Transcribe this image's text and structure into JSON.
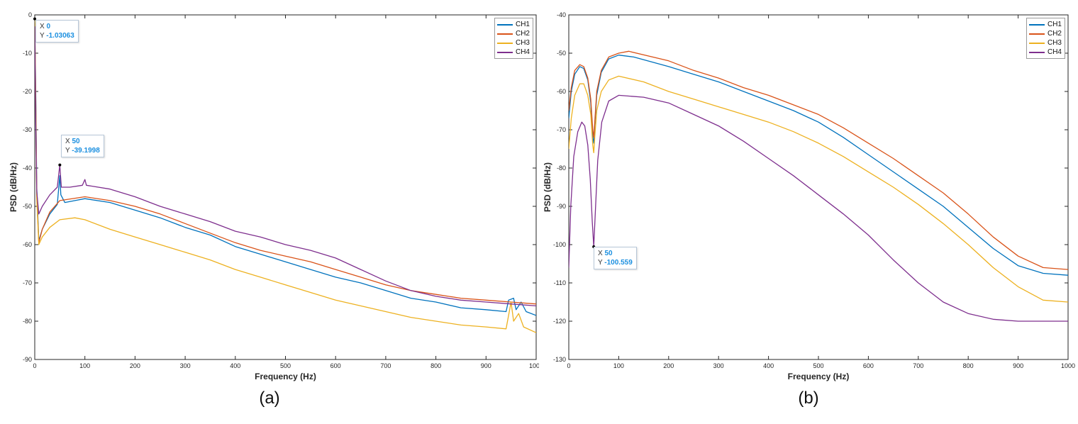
{
  "chart_data": [
    {
      "type": "line",
      "caption": "(a)",
      "xlabel": "Frequency (Hz)",
      "ylabel": "PSD (dB/Hz)",
      "xlim": [
        0,
        1000
      ],
      "ylim": [
        -90,
        0
      ],
      "xticks": [
        0,
        100,
        200,
        300,
        400,
        500,
        600,
        700,
        800,
        900,
        1000
      ],
      "yticks": [
        0,
        -10,
        -20,
        -30,
        -40,
        -50,
        -60,
        -70,
        -80,
        -90
      ],
      "legend_position": "top-right",
      "series": [
        {
          "name": "CH1",
          "color": "#0072BD",
          "points": [
            [
              0,
              -1.03
            ],
            [
              2,
              -20
            ],
            [
              4,
              -45
            ],
            [
              8,
              -59
            ],
            [
              15,
              -56
            ],
            [
              30,
              -52
            ],
            [
              45,
              -49.5
            ],
            [
              50,
              -42
            ],
            [
              52,
              -47
            ],
            [
              60,
              -49
            ],
            [
              80,
              -48.5
            ],
            [
              100,
              -48
            ],
            [
              150,
              -49
            ],
            [
              200,
              -51
            ],
            [
              250,
              -53
            ],
            [
              300,
              -55.5
            ],
            [
              350,
              -57.5
            ],
            [
              400,
              -60.5
            ],
            [
              450,
              -62.5
            ],
            [
              500,
              -64.5
            ],
            [
              550,
              -66.5
            ],
            [
              600,
              -68.5
            ],
            [
              650,
              -70
            ],
            [
              700,
              -72
            ],
            [
              750,
              -74
            ],
            [
              800,
              -75
            ],
            [
              850,
              -76.5
            ],
            [
              900,
              -77
            ],
            [
              940,
              -77.5
            ],
            [
              945,
              -74.5
            ],
            [
              955,
              -74
            ],
            [
              960,
              -77
            ],
            [
              970,
              -75
            ],
            [
              980,
              -77.5
            ],
            [
              1000,
              -78.5
            ]
          ]
        },
        {
          "name": "CH2",
          "color": "#D95319",
          "points": [
            [
              0,
              -2
            ],
            [
              2,
              -22
            ],
            [
              4,
              -47
            ],
            [
              8,
              -59.5
            ],
            [
              15,
              -56
            ],
            [
              30,
              -51.5
            ],
            [
              50,
              -48.5
            ],
            [
              100,
              -47.5
            ],
            [
              150,
              -48.5
            ],
            [
              200,
              -50
            ],
            [
              250,
              -52
            ],
            [
              300,
              -54.5
            ],
            [
              350,
              -57
            ],
            [
              400,
              -59.5
            ],
            [
              450,
              -61.5
            ],
            [
              500,
              -63
            ],
            [
              550,
              -64.5
            ],
            [
              600,
              -66.5
            ],
            [
              650,
              -68.5
            ],
            [
              700,
              -70.5
            ],
            [
              750,
              -72
            ],
            [
              800,
              -73
            ],
            [
              850,
              -74
            ],
            [
              900,
              -74.5
            ],
            [
              950,
              -75
            ],
            [
              1000,
              -75.5
            ]
          ]
        },
        {
          "name": "CH3",
          "color": "#EDB120",
          "points": [
            [
              0,
              -1
            ],
            [
              2,
              -25
            ],
            [
              4,
              -48
            ],
            [
              8,
              -60
            ],
            [
              15,
              -58
            ],
            [
              30,
              -55.5
            ],
            [
              50,
              -53.5
            ],
            [
              80,
              -53
            ],
            [
              100,
              -53.5
            ],
            [
              150,
              -56
            ],
            [
              200,
              -58
            ],
            [
              250,
              -60
            ],
            [
              300,
              -62
            ],
            [
              350,
              -64
            ],
            [
              400,
              -66.5
            ],
            [
              450,
              -68.5
            ],
            [
              500,
              -70.5
            ],
            [
              550,
              -72.5
            ],
            [
              600,
              -74.5
            ],
            [
              650,
              -76
            ],
            [
              700,
              -77.5
            ],
            [
              750,
              -79
            ],
            [
              800,
              -80
            ],
            [
              850,
              -81
            ],
            [
              900,
              -81.5
            ],
            [
              940,
              -82
            ],
            [
              945,
              -78.5
            ],
            [
              950,
              -75
            ],
            [
              955,
              -80
            ],
            [
              965,
              -78
            ],
            [
              975,
              -81.5
            ],
            [
              1000,
              -83
            ]
          ]
        },
        {
          "name": "CH4",
          "color": "#7E2F8E",
          "points": [
            [
              0,
              -3
            ],
            [
              2,
              -28
            ],
            [
              4,
              -46
            ],
            [
              8,
              -52
            ],
            [
              15,
              -50
            ],
            [
              30,
              -47
            ],
            [
              45,
              -45
            ],
            [
              50,
              -39.2
            ],
            [
              53,
              -45
            ],
            [
              70,
              -45
            ],
            [
              95,
              -44.5
            ],
            [
              100,
              -43
            ],
            [
              103,
              -44.5
            ],
            [
              150,
              -45.5
            ],
            [
              200,
              -47.5
            ],
            [
              250,
              -50
            ],
            [
              300,
              -52
            ],
            [
              350,
              -54
            ],
            [
              400,
              -56.5
            ],
            [
              450,
              -58
            ],
            [
              500,
              -60
            ],
            [
              550,
              -61.5
            ],
            [
              600,
              -63.5
            ],
            [
              650,
              -66.5
            ],
            [
              700,
              -69.5
            ],
            [
              750,
              -72
            ],
            [
              800,
              -73.5
            ],
            [
              850,
              -74.5
            ],
            [
              900,
              -75
            ],
            [
              950,
              -75.5
            ],
            [
              1000,
              -76
            ]
          ]
        }
      ],
      "annotations": [
        {
          "x_label": "X",
          "x_value": "0",
          "y_label": "Y",
          "y_value": "-1.03063",
          "x": 0,
          "y": -1.03063
        },
        {
          "x_label": "X",
          "x_value": "50",
          "y_label": "Y",
          "y_value": "-39.1998",
          "x": 50,
          "y": -39.1998
        }
      ]
    },
    {
      "type": "line",
      "caption": "(b)",
      "xlabel": "Frequency (Hz)",
      "ylabel": "PSD (dB/Hz)",
      "xlim": [
        0,
        1000
      ],
      "ylim": [
        -130,
        -40
      ],
      "xticks": [
        0,
        100,
        200,
        300,
        400,
        500,
        600,
        700,
        800,
        900,
        1000
      ],
      "yticks": [
        -40,
        -50,
        -60,
        -70,
        -80,
        -90,
        -100,
        -110,
        -120,
        -130
      ],
      "legend_position": "top-right",
      "series": [
        {
          "name": "CH1",
          "color": "#0072BD",
          "points": [
            [
              0,
              -67
            ],
            [
              5,
              -60
            ],
            [
              12,
              -55.5
            ],
            [
              22,
              -53.5
            ],
            [
              30,
              -54
            ],
            [
              38,
              -57
            ],
            [
              44,
              -63
            ],
            [
              48,
              -72
            ],
            [
              50,
              -73.5
            ],
            [
              52,
              -69
            ],
            [
              56,
              -61
            ],
            [
              65,
              -55
            ],
            [
              80,
              -51.5
            ],
            [
              100,
              -50.5
            ],
            [
              130,
              -51
            ],
            [
              200,
              -53.5
            ],
            [
              250,
              -55.5
            ],
            [
              300,
              -57.5
            ],
            [
              350,
              -60
            ],
            [
              400,
              -62.5
            ],
            [
              450,
              -65
            ],
            [
              500,
              -68
            ],
            [
              550,
              -72
            ],
            [
              600,
              -76.5
            ],
            [
              650,
              -81
            ],
            [
              700,
              -85.5
            ],
            [
              750,
              -90
            ],
            [
              800,
              -95.5
            ],
            [
              850,
              -101
            ],
            [
              900,
              -105.5
            ],
            [
              950,
              -107.5
            ],
            [
              1000,
              -108
            ]
          ]
        },
        {
          "name": "CH2",
          "color": "#D95319",
          "points": [
            [
              0,
              -65
            ],
            [
              5,
              -59
            ],
            [
              12,
              -54.5
            ],
            [
              22,
              -53
            ],
            [
              30,
              -53.5
            ],
            [
              38,
              -56.5
            ],
            [
              44,
              -62
            ],
            [
              48,
              -70
            ],
            [
              50,
              -72
            ],
            [
              52,
              -68
            ],
            [
              56,
              -60
            ],
            [
              65,
              -54.5
            ],
            [
              80,
              -51
            ],
            [
              100,
              -50
            ],
            [
              120,
              -49.5
            ],
            [
              200,
              -52
            ],
            [
              250,
              -54.5
            ],
            [
              300,
              -56.5
            ],
            [
              350,
              -59
            ],
            [
              400,
              -61
            ],
            [
              450,
              -63.5
            ],
            [
              500,
              -66
            ],
            [
              550,
              -69.5
            ],
            [
              600,
              -73.5
            ],
            [
              650,
              -77.5
            ],
            [
              700,
              -82
            ],
            [
              750,
              -86.5
            ],
            [
              800,
              -92
            ],
            [
              850,
              -98
            ],
            [
              900,
              -103
            ],
            [
              950,
              -106
            ],
            [
              1000,
              -106.5
            ]
          ]
        },
        {
          "name": "CH3",
          "color": "#EDB120",
          "points": [
            [
              0,
              -75
            ],
            [
              5,
              -67
            ],
            [
              12,
              -61
            ],
            [
              22,
              -58
            ],
            [
              30,
              -58
            ],
            [
              38,
              -61
            ],
            [
              44,
              -66
            ],
            [
              48,
              -74
            ],
            [
              50,
              -76
            ],
            [
              52,
              -72
            ],
            [
              56,
              -65
            ],
            [
              65,
              -60
            ],
            [
              80,
              -57
            ],
            [
              100,
              -56
            ],
            [
              150,
              -57.5
            ],
            [
              200,
              -60
            ],
            [
              250,
              -62
            ],
            [
              300,
              -64
            ],
            [
              350,
              -66
            ],
            [
              400,
              -68
            ],
            [
              450,
              -70.5
            ],
            [
              500,
              -73.5
            ],
            [
              550,
              -77
            ],
            [
              600,
              -81
            ],
            [
              650,
              -85
            ],
            [
              700,
              -89.5
            ],
            [
              750,
              -94.5
            ],
            [
              800,
              -100
            ],
            [
              850,
              -106
            ],
            [
              900,
              -111
            ],
            [
              950,
              -114.5
            ],
            [
              1000,
              -115
            ]
          ]
        },
        {
          "name": "CH4",
          "color": "#7E2F8E",
          "points": [
            [
              0,
              -106
            ],
            [
              4,
              -90
            ],
            [
              10,
              -77
            ],
            [
              18,
              -70.5
            ],
            [
              26,
              -68
            ],
            [
              32,
              -69
            ],
            [
              38,
              -74
            ],
            [
              43,
              -83
            ],
            [
              47,
              -94
            ],
            [
              50,
              -100.5
            ],
            [
              53,
              -92
            ],
            [
              58,
              -78
            ],
            [
              66,
              -68
            ],
            [
              80,
              -62.5
            ],
            [
              100,
              -61
            ],
            [
              150,
              -61.5
            ],
            [
              200,
              -63
            ],
            [
              250,
              -66
            ],
            [
              300,
              -69
            ],
            [
              350,
              -73
            ],
            [
              400,
              -77.5
            ],
            [
              450,
              -82
            ],
            [
              500,
              -87
            ],
            [
              550,
              -92
            ],
            [
              600,
              -97.5
            ],
            [
              650,
              -104
            ],
            [
              700,
              -110
            ],
            [
              750,
              -115
            ],
            [
              800,
              -118
            ],
            [
              850,
              -119.5
            ],
            [
              900,
              -120
            ],
            [
              1000,
              -120
            ]
          ]
        }
      ],
      "annotations": [
        {
          "x_label": "X",
          "x_value": "50",
          "y_label": "Y",
          "y_value": "-100.559",
          "x": 50,
          "y": -100.559
        }
      ]
    }
  ]
}
